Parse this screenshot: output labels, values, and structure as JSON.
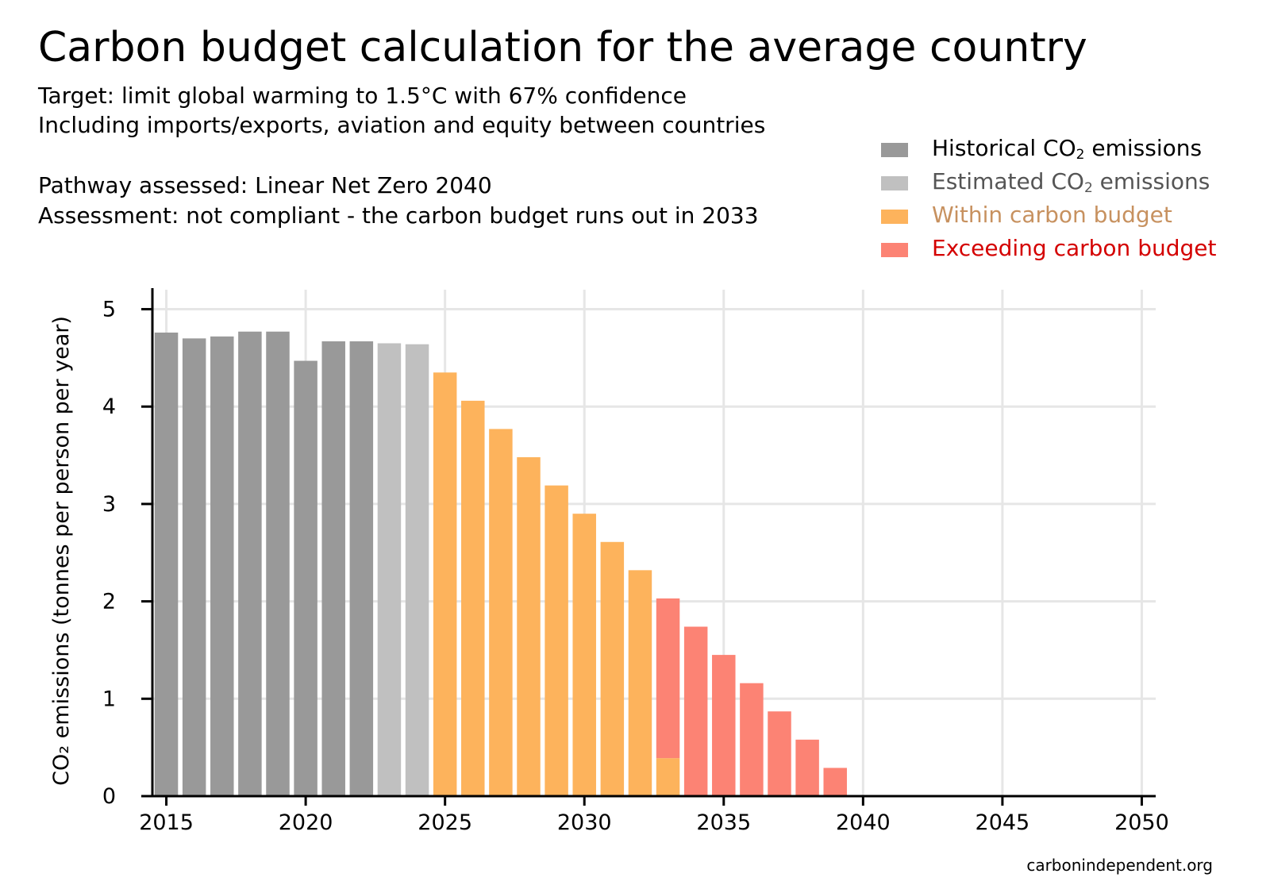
{
  "header": {
    "title": "Carbon budget calculation for the average country",
    "subtitle_lines": [
      "Target: limit global warming to 1.5°C with 67% confidence",
      "Including imports/exports, aviation and equity between countries"
    ],
    "pathway": "Pathway assessed: Linear Net Zero 2040",
    "assessment": "Assessment: not compliant - the carbon budget runs out in 2033"
  },
  "legend": {
    "items": [
      {
        "key": "historical",
        "pre": "Historical CO",
        "sub": "2",
        "post": " emissions",
        "color": "#999999",
        "text_color": "#000000"
      },
      {
        "key": "estimated",
        "pre": "Estimated CO",
        "sub": "2",
        "post": " emissions",
        "color": "#c0c0c0",
        "text_color": "#555555"
      },
      {
        "key": "within",
        "pre": "Within carbon budget",
        "sub": "",
        "post": "",
        "color": "#fdb35c",
        "text_color": "#c7915f"
      },
      {
        "key": "exceeding",
        "pre": "Exceeding carbon budget",
        "sub": "",
        "post": "",
        "color": "#fc8374",
        "text_color": "#d40000"
      }
    ]
  },
  "chart_data": {
    "type": "bar",
    "stacked": true,
    "ylabel": "CO₂ emissions (tonnes per person per year)",
    "xlabel": "",
    "xlim": [
      2014.5,
      2050.5
    ],
    "ylim": [
      0,
      5.2
    ],
    "x_ticks": [
      2015,
      2020,
      2025,
      2030,
      2035,
      2040,
      2045,
      2050
    ],
    "y_ticks": [
      0,
      1,
      2,
      3,
      4,
      5
    ],
    "grid": true,
    "legend_position": "top-right",
    "colors": {
      "historical": "#999999",
      "estimated": "#c0c0c0",
      "within": "#fdb35c",
      "exceeding": "#fc8374"
    },
    "x": [
      2015,
      2016,
      2017,
      2018,
      2019,
      2020,
      2021,
      2022,
      2023,
      2024,
      2025,
      2026,
      2027,
      2028,
      2029,
      2030,
      2031,
      2032,
      2033,
      2034,
      2035,
      2036,
      2037,
      2038,
      2039,
      2040,
      2041,
      2042,
      2043,
      2044,
      2045,
      2046,
      2047,
      2048,
      2049,
      2050
    ],
    "series": [
      {
        "name": "Historical CO2 emissions",
        "key": "historical",
        "values": [
          4.76,
          4.7,
          4.72,
          4.77,
          4.77,
          4.47,
          4.67,
          4.67,
          0,
          0,
          0,
          0,
          0,
          0,
          0,
          0,
          0,
          0,
          0,
          0,
          0,
          0,
          0,
          0,
          0,
          0,
          0,
          0,
          0,
          0,
          0,
          0,
          0,
          0,
          0,
          0
        ]
      },
      {
        "name": "Estimated CO2 emissions",
        "key": "estimated",
        "values": [
          0,
          0,
          0,
          0,
          0,
          0,
          0,
          0,
          4.65,
          4.64,
          0,
          0,
          0,
          0,
          0,
          0,
          0,
          0,
          0,
          0,
          0,
          0,
          0,
          0,
          0,
          0,
          0,
          0,
          0,
          0,
          0,
          0,
          0,
          0,
          0,
          0
        ]
      },
      {
        "name": "Within carbon budget",
        "key": "within",
        "values": [
          0,
          0,
          0,
          0,
          0,
          0,
          0,
          0,
          0,
          0,
          4.35,
          4.06,
          3.77,
          3.48,
          3.19,
          2.9,
          2.61,
          2.32,
          0.39,
          0,
          0,
          0,
          0,
          0,
          0,
          0,
          0,
          0,
          0,
          0,
          0,
          0,
          0,
          0,
          0,
          0
        ]
      },
      {
        "name": "Exceeding carbon budget",
        "key": "exceeding",
        "values": [
          0,
          0,
          0,
          0,
          0,
          0,
          0,
          0,
          0,
          0,
          0,
          0,
          0,
          0,
          0,
          0,
          0,
          0,
          1.64,
          1.74,
          1.45,
          1.16,
          0.87,
          0.58,
          0.29,
          0,
          0,
          0,
          0,
          0,
          0,
          0,
          0,
          0,
          0,
          0.01
        ]
      }
    ]
  },
  "footer": {
    "source": "carbonindependent.org"
  }
}
